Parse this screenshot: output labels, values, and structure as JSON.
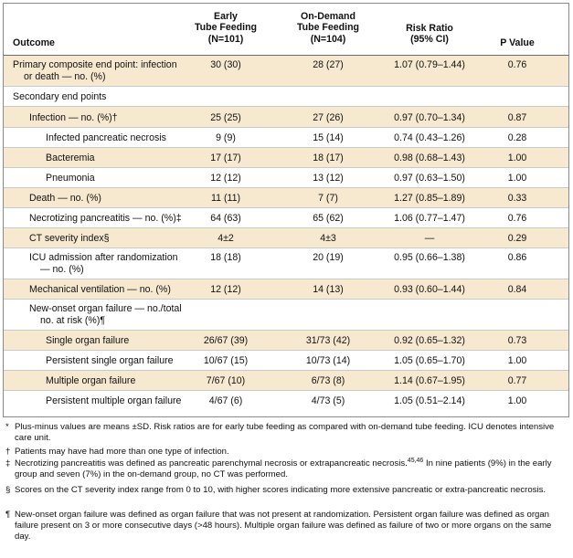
{
  "columns": {
    "outcome": "Outcome",
    "early": [
      "Early",
      "Tube Feeding",
      "(N=101)"
    ],
    "on_demand": [
      "On-Demand",
      "Tube Feeding",
      "(N=104)"
    ],
    "risk_ratio": [
      "Risk Ratio",
      "(95% CI)"
    ],
    "p_value": "P Value"
  },
  "rows": [
    {
      "outcome": [
        "Primary composite end point: infection",
        "or death — no. (%)"
      ],
      "early": "30 (30)",
      "on_demand": "28 (27)",
      "risk_ratio": "1.07 (0.79–1.44)",
      "p": "0.76"
    },
    {
      "outcome": [
        "Secondary end points"
      ],
      "early": "",
      "on_demand": "",
      "risk_ratio": "",
      "p": ""
    },
    {
      "outcome": [
        "Infection — no. (%)†"
      ],
      "early": "25 (25)",
      "on_demand": "27 (26)",
      "risk_ratio": "0.97 (0.70–1.34)",
      "p": "0.87"
    },
    {
      "outcome": [
        "Infected pancreatic necrosis"
      ],
      "early": "9 (9)",
      "on_demand": "15 (14)",
      "risk_ratio": "0.74 (0.43–1.26)",
      "p": "0.28"
    },
    {
      "outcome": [
        "Bacteremia"
      ],
      "early": "17 (17)",
      "on_demand": "18 (17)",
      "risk_ratio": "0.98 (0.68–1.43)",
      "p": "1.00"
    },
    {
      "outcome": [
        "Pneumonia"
      ],
      "early": "12 (12)",
      "on_demand": "13 (12)",
      "risk_ratio": "0.97 (0.63–1.50)",
      "p": "1.00"
    },
    {
      "outcome": [
        "Death — no. (%)"
      ],
      "early": "11 (11)",
      "on_demand": "7 (7)",
      "risk_ratio": "1.27 (0.85–1.89)",
      "p": "0.33"
    },
    {
      "outcome": [
        "Necrotizing pancreatitis — no. (%)‡"
      ],
      "early": "64 (63)",
      "on_demand": "65 (62)",
      "risk_ratio": "1.06 (0.77–1.47)",
      "p": "0.76"
    },
    {
      "outcome": [
        "CT severity index§"
      ],
      "early": "4±2",
      "on_demand": "4±3",
      "risk_ratio": "—",
      "p": "0.29"
    },
    {
      "outcome": [
        "ICU admission after randomization",
        "— no. (%)"
      ],
      "early": "18 (18)",
      "on_demand": "20 (19)",
      "risk_ratio": "0.95 (0.66–1.38)",
      "p": "0.86"
    },
    {
      "outcome": [
        "Mechanical ventilation — no. (%)"
      ],
      "early": "12 (12)",
      "on_demand": "14 (13)",
      "risk_ratio": "0.93 (0.60–1.44)",
      "p": "0.84"
    },
    {
      "outcome": [
        "New-onset organ failure — no./total",
        "no. at risk (%)¶"
      ],
      "early": "",
      "on_demand": "",
      "risk_ratio": "",
      "p": ""
    },
    {
      "outcome": [
        "Single organ failure"
      ],
      "early": "26/67 (39)",
      "on_demand": "31/73 (42)",
      "risk_ratio": "0.92 (0.65–1.32)",
      "p": "0.73"
    },
    {
      "outcome": [
        "Persistent single organ failure"
      ],
      "early": "10/67 (15)",
      "on_demand": "10/73 (14)",
      "risk_ratio": "1.05 (0.65–1.70)",
      "p": "1.00"
    },
    {
      "outcome": [
        "Multiple organ failure"
      ],
      "early": "7/67 (10)",
      "on_demand": "6/73 (8)",
      "risk_ratio": "1.14 (0.67–1.95)",
      "p": "0.77"
    },
    {
      "outcome": [
        "Persistent multiple organ failure"
      ],
      "early": "4/67 (6)",
      "on_demand": "4/73 (5)",
      "risk_ratio": "1.05 (0.51–2.14)",
      "p": "1.00"
    }
  ],
  "footnotes": [
    {
      "symbol": "*",
      "text": "Plus-minus values are means ±SD. Risk ratios are for early tube feeding as compared with on-demand tube feeding. ICU denotes intensive care unit."
    },
    {
      "symbol": "†",
      "text": "Patients may have had more than one type of infection."
    },
    {
      "symbol": "‡",
      "text_before": "Necrotizing pancreatitis was defined as pancreatic parenchymal necrosis or extrapancreatic necrosis.",
      "superscript": "45,46",
      "text_after": " In nine patients (9%) in the early group and seven (7%) in the on-demand group, no CT was performed."
    },
    {
      "symbol": "§",
      "text": "Scores on the CT severity index range from 0 to 10, with higher scores indicating more extensive pancreatic or extra-pancreatic necrosis."
    },
    {
      "symbol": "¶",
      "text": "New-onset organ failure was defined as organ failure that was not present at randomization. Persistent organ failure was defined as organ failure present on 3 or more consecutive days (>48 hours). Multiple organ failure was defined as failure of two or more organs on the same day."
    }
  ]
}
